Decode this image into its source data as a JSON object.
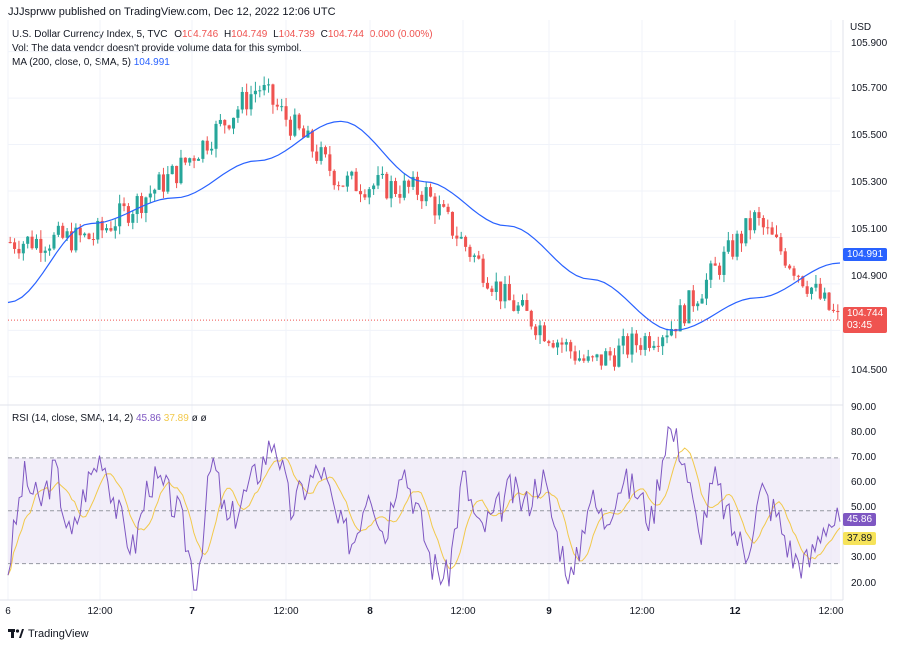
{
  "header": {
    "published": "JJJsprww published on TradingView.com, Dec 12, 2022 12:06 UTC"
  },
  "legend": {
    "symbol": "U.S. Dollar Currency Index, 5, TVC",
    "o_label": "O",
    "o_val": "104.746",
    "h_label": "H",
    "h_val": "104.749",
    "l_label": "L",
    "l_val": "104.739",
    "c_label": "C",
    "c_val": "104.744",
    "change": "0.000 (0.00%)",
    "vol_note": "Vol: The data vendor doesn't provide volume data for this symbol.",
    "ma_label": "MA (200, close, 0, SMA, 5)",
    "ma_value": "104.991"
  },
  "rsi_legend": {
    "label": "RSI (14, close, SMA, 14, 2)",
    "rsi_value": "45.86",
    "sma_value": "37.89",
    "extras": "ø  ø"
  },
  "axis": {
    "currency": "USD",
    "price_ticks": [
      "105.900",
      "105.700",
      "105.500",
      "105.300",
      "105.100",
      "104.900",
      "104.500"
    ],
    "rsi_ticks": [
      "90.00",
      "80.00",
      "70.00",
      "60.00",
      "50.00",
      "30.00",
      "20.00"
    ],
    "time_ticks": [
      "6",
      "12:00",
      "7",
      "12:00",
      "8",
      "12:00",
      "9",
      "12:00",
      "12",
      "12:00"
    ]
  },
  "badges": {
    "ma_badge": "104.991",
    "price_badge": "104.744",
    "countdown": "03:45",
    "rsi_badge": "45.86",
    "rsi_sma_badge": "37.89"
  },
  "footer": {
    "brand": "TradingView"
  },
  "colors": {
    "up": "#26a69a",
    "down": "#ef5350",
    "ma": "#2962ff",
    "rsi": "#7e57c2",
    "rsi_sma": "#f2c94c",
    "rsi_band": "#ede7f6"
  },
  "chart_data": [
    {
      "type": "candlestick",
      "title": "U.S. Dollar Currency Index, 5, TVC",
      "ylim": [
        104.4,
        105.95
      ],
      "series": [
        {
          "name": "MA (200, close, 0, SMA, 5)",
          "x": [
            "6",
            "6 12:00",
            "7",
            "7 06:00",
            "7 12:00",
            "8",
            "8 12:00",
            "9",
            "9 12:00",
            "12",
            "12 12:00"
          ],
          "values": [
            104.82,
            105.16,
            105.27,
            105.43,
            105.6,
            105.34,
            105.15,
            104.92,
            104.7,
            104.84,
            104.99
          ]
        },
        {
          "name": "price",
          "x": [
            "6",
            "6 12:00",
            "7",
            "7 06:00",
            "7 12:00",
            "8",
            "8 12:00",
            "9",
            "9 12:00",
            "12",
            "12 12:00"
          ],
          "values": [
            105.08,
            105.1,
            105.38,
            105.75,
            105.34,
            105.3,
            104.83,
            104.55,
            104.72,
            105.18,
            104.744
          ]
        }
      ]
    },
    {
      "type": "line",
      "title": "RSI (14, close, SMA, 14, 2)",
      "ylim": [
        17,
        90
      ],
      "bands": [
        30,
        70
      ],
      "series": [
        {
          "name": "RSI",
          "values": [
            28,
            63,
            52,
            66,
            38,
            60,
            72,
            49,
            35,
            62,
            58,
            47,
            22,
            70,
            44,
            55,
            66,
            78,
            50,
            60,
            66,
            45,
            38,
            61,
            40,
            70,
            52,
            30,
            24,
            64,
            42,
            48,
            58,
            52,
            64,
            40,
            23,
            56,
            46,
            61,
            58,
            46,
            82,
            72,
            40,
            62,
            45,
            34,
            58,
            48,
            32,
            30,
            46,
            45.86
          ]
        }
      ]
    }
  ]
}
